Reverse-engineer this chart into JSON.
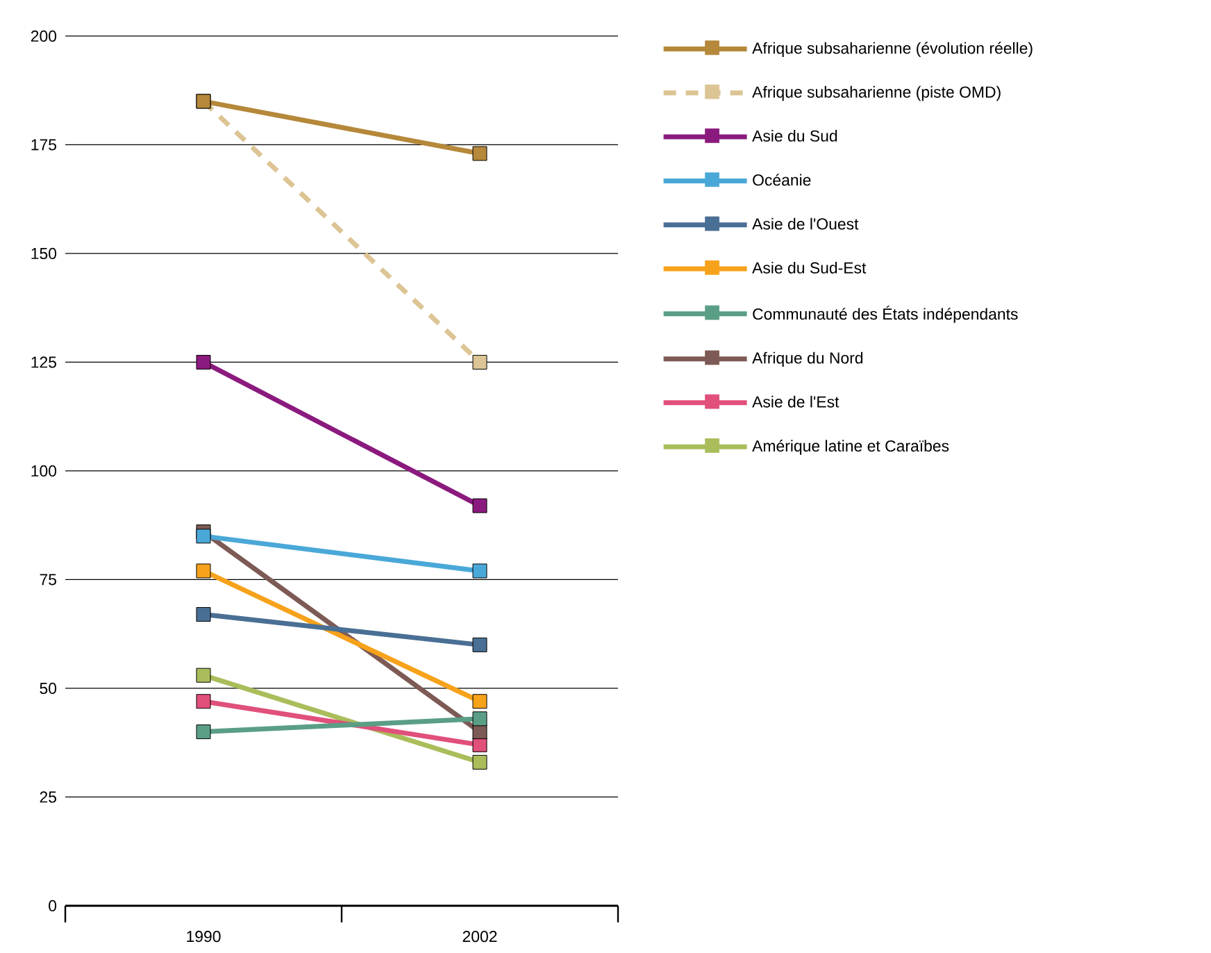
{
  "chart_data": {
    "type": "line",
    "categories": [
      "1990",
      "2002"
    ],
    "ylim": [
      0,
      200
    ],
    "yticks": [
      0,
      25,
      50,
      75,
      100,
      125,
      150,
      175,
      200
    ],
    "grid": "y",
    "legend": "right",
    "marker": "square",
    "line_style": "solid",
    "series": [
      {
        "name": "Afrique subsaharienne (évolution réelle)",
        "color": "#b5883a",
        "values": [
          185,
          173
        ]
      },
      {
        "name": "Afrique subsaharienne (piste OMD)",
        "color": "#dcc494",
        "values": [
          185,
          125
        ],
        "line_style": "dashed"
      },
      {
        "name": "Asie  du Sud",
        "color": "#8b1a7e",
        "values": [
          125,
          92
        ]
      },
      {
        "name": "Océanie",
        "color": "#4aa8d8",
        "values": [
          85,
          77
        ]
      },
      {
        "name": "Asie de l'Ouest",
        "color": "#4a6f94",
        "values": [
          67,
          60
        ]
      },
      {
        "name": "Asie du Sud-Est",
        "color": "#f7a21b",
        "values": [
          77,
          47
        ]
      },
      {
        "name": "Communauté des États indépendants",
        "color": "#5a9e86",
        "values": [
          40,
          43
        ]
      },
      {
        "name": "Afrique du Nord",
        "color": "#7d5a55",
        "values": [
          86,
          40
        ]
      },
      {
        "name": "Asie de l'Est",
        "color": "#e0507a",
        "values": [
          47,
          37
        ]
      },
      {
        "name": "Amérique latine et Caraïbes",
        "color": "#a9bd5a",
        "values": [
          53,
          33
        ]
      }
    ]
  }
}
